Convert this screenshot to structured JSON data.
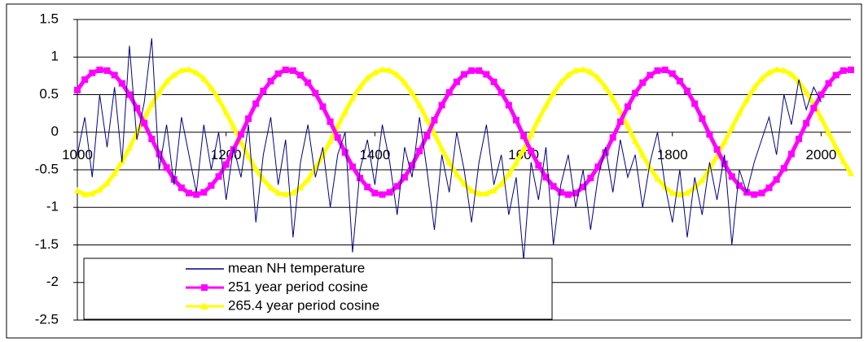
{
  "chart_data": {
    "type": "line",
    "x": [
      1000,
      1010,
      1020,
      1030,
      1040,
      1050,
      1060,
      1070,
      1080,
      1090,
      1100,
      1110,
      1120,
      1130,
      1140,
      1150,
      1160,
      1170,
      1180,
      1190,
      1200,
      1210,
      1220,
      1230,
      1240,
      1250,
      1260,
      1270,
      1280,
      1290,
      1300,
      1310,
      1320,
      1330,
      1340,
      1350,
      1360,
      1370,
      1380,
      1390,
      1400,
      1410,
      1420,
      1430,
      1440,
      1450,
      1460,
      1470,
      1480,
      1490,
      1500,
      1510,
      1520,
      1530,
      1540,
      1550,
      1560,
      1570,
      1580,
      1590,
      1600,
      1610,
      1620,
      1630,
      1640,
      1650,
      1660,
      1670,
      1680,
      1690,
      1700,
      1710,
      1720,
      1730,
      1740,
      1750,
      1760,
      1770,
      1780,
      1790,
      1800,
      1810,
      1820,
      1830,
      1840,
      1850,
      1860,
      1870,
      1880,
      1890,
      1900,
      1910,
      1920,
      1930,
      1940,
      1950,
      1960,
      1970,
      1980,
      1990,
      2000,
      2010,
      2020,
      2030,
      2040
    ],
    "series": [
      {
        "name": "mean NH temperature",
        "color": "#000080",
        "marker": "none",
        "values": [
          -0.3,
          0.2,
          -0.6,
          0.5,
          -0.2,
          0.6,
          -0.4,
          1.15,
          -0.1,
          0.4,
          1.25,
          -0.5,
          0.1,
          -0.7,
          0.2,
          -0.3,
          -0.8,
          0.1,
          -0.5,
          0.0,
          -0.9,
          -0.2,
          -0.6,
          0.1,
          -1.2,
          -0.3,
          0.2,
          -0.7,
          -0.1,
          -1.4,
          -0.4,
          0.1,
          -0.6,
          -0.2,
          -1.0,
          -0.3,
          0.0,
          -1.6,
          -0.5,
          -0.1,
          -0.7,
          0.1,
          -0.4,
          -1.1,
          -0.2,
          -0.6,
          0.2,
          -0.5,
          -1.3,
          -0.3,
          -0.8,
          0.0,
          -0.5,
          -1.2,
          -0.4,
          0.1,
          -0.7,
          -0.3,
          -1.1,
          -0.6,
          -1.7,
          -0.4,
          -0.9,
          -0.2,
          -1.5,
          -0.7,
          -0.3,
          -1.0,
          -0.5,
          -1.3,
          -0.6,
          -0.2,
          -0.8,
          -0.1,
          -0.6,
          -0.3,
          -1.0,
          -0.4,
          0.0,
          -0.7,
          -1.2,
          -0.5,
          -1.4,
          -0.6,
          -1.1,
          -0.4,
          -0.9,
          -0.3,
          -1.5,
          -0.5,
          -0.8,
          -0.4,
          -0.1,
          0.2,
          -0.3,
          0.5,
          0.1,
          0.7,
          0.3,
          0.6,
          0.4,
          null,
          null,
          null,
          null
        ]
      },
      {
        "name": "251 year period cosine",
        "color": "#ff00ff",
        "marker": "square",
        "values": [
          0.56,
          0.7,
          0.79,
          0.83,
          0.82,
          0.76,
          0.65,
          0.5,
          0.32,
          0.12,
          -0.09,
          -0.29,
          -0.47,
          -0.63,
          -0.74,
          -0.81,
          -0.83,
          -0.8,
          -0.71,
          -0.59,
          -0.43,
          -0.23,
          -0.03,
          0.18,
          0.38,
          0.55,
          0.68,
          0.78,
          0.83,
          0.82,
          0.76,
          0.66,
          0.52,
          0.34,
          0.14,
          -0.07,
          -0.27,
          -0.46,
          -0.61,
          -0.73,
          -0.81,
          -0.83,
          -0.8,
          -0.72,
          -0.6,
          -0.44,
          -0.25,
          -0.05,
          0.16,
          0.36,
          0.53,
          0.67,
          0.77,
          0.82,
          0.82,
          0.77,
          0.67,
          0.53,
          0.36,
          0.16,
          -0.05,
          -0.25,
          -0.44,
          -0.6,
          -0.72,
          -0.8,
          -0.83,
          -0.81,
          -0.73,
          -0.61,
          -0.46,
          -0.27,
          -0.07,
          0.14,
          0.34,
          0.52,
          0.66,
          0.76,
          0.82,
          0.83,
          0.78,
          0.68,
          0.55,
          0.38,
          0.18,
          -0.03,
          -0.23,
          -0.42,
          -0.59,
          -0.71,
          -0.8,
          -0.83,
          -0.81,
          -0.74,
          -0.63,
          -0.48,
          -0.29,
          -0.09,
          0.12,
          0.32,
          0.5,
          0.65,
          0.76,
          0.82,
          0.83
        ]
      },
      {
        "name": "265.4 year period cosine",
        "color": "#ffff00",
        "marker": "triangle",
        "values": [
          -0.78,
          -0.83,
          -0.82,
          -0.77,
          -0.68,
          -0.55,
          -0.39,
          -0.21,
          -0.01,
          0.18,
          0.37,
          0.53,
          0.67,
          0.76,
          0.82,
          0.83,
          0.79,
          0.71,
          0.59,
          0.44,
          0.26,
          0.07,
          -0.13,
          -0.32,
          -0.49,
          -0.63,
          -0.74,
          -0.81,
          -0.83,
          -0.81,
          -0.74,
          -0.63,
          -0.48,
          -0.31,
          -0.12,
          0.08,
          0.27,
          0.45,
          0.6,
          0.72,
          0.79,
          0.83,
          0.82,
          0.76,
          0.66,
          0.52,
          0.36,
          0.17,
          -0.02,
          -0.22,
          -0.4,
          -0.56,
          -0.69,
          -0.78,
          -0.82,
          -0.82,
          -0.78,
          -0.69,
          -0.56,
          -0.41,
          -0.23,
          -0.03,
          0.17,
          0.35,
          0.52,
          0.66,
          0.76,
          0.82,
          0.83,
          0.8,
          0.72,
          0.6,
          0.45,
          0.27,
          0.08,
          -0.12,
          -0.3,
          -0.48,
          -0.62,
          -0.73,
          -0.81,
          -0.83,
          -0.81,
          -0.74,
          -0.64,
          -0.49,
          -0.32,
          -0.13,
          0.06,
          0.25,
          0.43,
          0.59,
          0.71,
          0.79,
          0.83,
          0.82,
          0.77,
          0.67,
          0.53,
          0.37,
          0.19,
          -0.01,
          -0.2,
          -0.39,
          -0.55
        ]
      }
    ],
    "xlim": [
      1000,
      2040
    ],
    "xticks": [
      1000,
      1200,
      1400,
      1600,
      1800,
      2000
    ],
    "ylim": [
      -2.5,
      1.5
    ],
    "yticks": [
      -2.5,
      -2,
      -1.5,
      -1,
      -0.5,
      0,
      0.5,
      1,
      1.5
    ],
    "grid": true,
    "legend": "lower left"
  }
}
